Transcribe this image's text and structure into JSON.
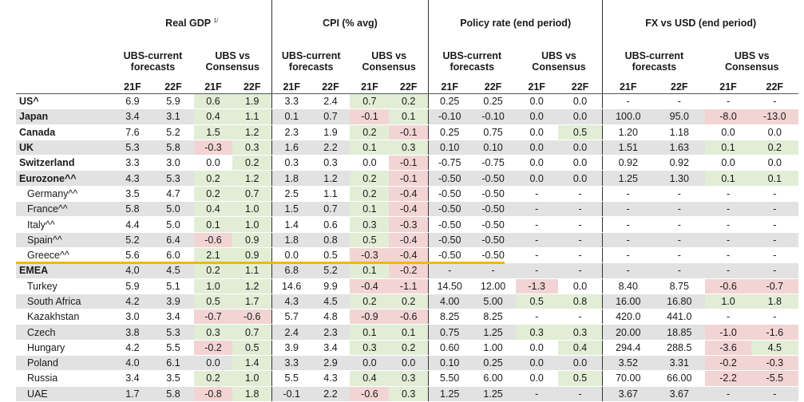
{
  "groups": {
    "gdp": "Real GDP",
    "gdp_note": "1/",
    "cpi": "CPI (% avg)",
    "policy": "Policy rate (end period)",
    "fx": "FX vs USD (end period)"
  },
  "subheaders": {
    "ubs_current_1": "UBS-current",
    "ubs_current_2": "forecasts",
    "vs_1": "UBS vs",
    "vs_2": "Consensus"
  },
  "years": [
    "21F",
    "22F"
  ],
  "rows": [
    {
      "label": "US^",
      "style": "bold",
      "shade": false,
      "v": [
        "6.9",
        "5.9",
        "0.6",
        "1.9",
        "3.3",
        "2.4",
        "0.7",
        "0.2",
        "0.25",
        "0.25",
        "0.0",
        "0.0",
        "-",
        "-",
        "-",
        "-"
      ],
      "c": [
        "",
        "",
        "g",
        "g",
        "",
        "",
        "g",
        "g",
        "",
        "",
        "",
        "",
        "",
        "",
        "",
        ""
      ]
    },
    {
      "label": "Japan",
      "style": "bold",
      "shade": true,
      "v": [
        "3.4",
        "3.1",
        "0.4",
        "1.1",
        "0.1",
        "0.7",
        "-0.1",
        "0.1",
        "-0.10",
        "-0.10",
        "0.0",
        "0.0",
        "100.0",
        "95.0",
        "-8.0",
        "-13.0"
      ],
      "c": [
        "",
        "",
        "g",
        "g",
        "",
        "",
        "r",
        "g",
        "",
        "",
        "",
        "",
        "",
        "",
        "r",
        "r"
      ]
    },
    {
      "label": "Canada",
      "style": "bold",
      "shade": false,
      "v": [
        "7.6",
        "5.2",
        "1.5",
        "1.2",
        "2.3",
        "1.9",
        "0.2",
        "-0.1",
        "0.25",
        "0.75",
        "0.0",
        "0.5",
        "1.20",
        "1.18",
        "0.0",
        "0.0"
      ],
      "c": [
        "",
        "",
        "g",
        "g",
        "",
        "",
        "g",
        "r",
        "",
        "",
        "",
        "g",
        "",
        "",
        "",
        ""
      ]
    },
    {
      "label": "UK",
      "style": "bold",
      "shade": true,
      "v": [
        "5.3",
        "5.8",
        "-0.3",
        "0.3",
        "1.6",
        "2.2",
        "0.1",
        "0.3",
        "0.10",
        "0.10",
        "0.0",
        "0.0",
        "1.51",
        "1.63",
        "0.1",
        "0.2"
      ],
      "c": [
        "",
        "",
        "r",
        "g",
        "",
        "",
        "g",
        "g",
        "",
        "",
        "",
        "",
        "",
        "",
        "g",
        "g"
      ]
    },
    {
      "label": "Switzerland",
      "style": "bold",
      "shade": false,
      "v": [
        "3.3",
        "3.0",
        "0.0",
        "0.2",
        "0.3",
        "0.3",
        "0.0",
        "-0.1",
        "-0.75",
        "-0.75",
        "0.0",
        "0.0",
        "0.92",
        "0.92",
        "0.0",
        "0.0"
      ],
      "c": [
        "",
        "",
        "",
        "g",
        "",
        "",
        "",
        "r",
        "",
        "",
        "",
        "",
        "",
        "",
        "",
        ""
      ]
    },
    {
      "label": "Eurozone^^",
      "style": "bold",
      "shade": true,
      "v": [
        "4.3",
        "5.3",
        "0.2",
        "1.2",
        "1.8",
        "1.2",
        "0.2",
        "-0.1",
        "-0.50",
        "-0.50",
        "0.0",
        "0.0",
        "1.25",
        "1.30",
        "0.1",
        "0.1"
      ],
      "c": [
        "",
        "",
        "g",
        "g",
        "",
        "",
        "g",
        "r",
        "",
        "",
        "",
        "",
        "",
        "",
        "g",
        "g"
      ]
    },
    {
      "label": "Germany^^",
      "style": "indent",
      "shade": false,
      "v": [
        "3.5",
        "4.7",
        "0.2",
        "0.7",
        "2.5",
        "1.1",
        "0.2",
        "-0.4",
        "-0.50",
        "-0.50",
        "-",
        "-",
        "-",
        "-",
        "-",
        "-"
      ],
      "c": [
        "",
        "",
        "g",
        "g",
        "",
        "",
        "g",
        "r",
        "",
        "",
        "",
        "",
        "",
        "",
        "",
        ""
      ]
    },
    {
      "label": "France^^",
      "style": "indent",
      "shade": true,
      "v": [
        "5.8",
        "5.0",
        "0.4",
        "1.0",
        "1.5",
        "0.7",
        "0.1",
        "-0.4",
        "-0.50",
        "-0.50",
        "-",
        "-",
        "-",
        "-",
        "-",
        "-"
      ],
      "c": [
        "",
        "",
        "g",
        "g",
        "",
        "",
        "g",
        "r",
        "",
        "",
        "",
        "",
        "",
        "",
        "",
        ""
      ]
    },
    {
      "label": "Italy^^",
      "style": "indent",
      "shade": false,
      "v": [
        "4.4",
        "5.0",
        "0.1",
        "1.0",
        "1.4",
        "0.6",
        "0.3",
        "-0.3",
        "-0.50",
        "-0.50",
        "-",
        "-",
        "-",
        "-",
        "-",
        "-"
      ],
      "c": [
        "",
        "",
        "g",
        "g",
        "",
        "",
        "g",
        "r",
        "",
        "",
        "",
        "",
        "",
        "",
        "",
        ""
      ]
    },
    {
      "label": "Spain^^",
      "style": "indent",
      "shade": true,
      "v": [
        "5.2",
        "6.4",
        "-0.6",
        "0.9",
        "1.8",
        "0.8",
        "0.5",
        "-0.4",
        "-0.50",
        "-0.50",
        "-",
        "-",
        "-",
        "-",
        "-",
        "-"
      ],
      "c": [
        "",
        "",
        "r",
        "g",
        "",
        "",
        "g",
        "r",
        "",
        "",
        "",
        "",
        "",
        "",
        "",
        ""
      ]
    },
    {
      "label": "Greece^^",
      "style": "indent",
      "shade": false,
      "v": [
        "5.6",
        "6.0",
        "2.1",
        "0.9",
        "0.0",
        "0.5",
        "-0.3",
        "-0.4",
        "-0.50",
        "-0.50",
        "-",
        "-",
        "-",
        "-",
        "-",
        "-"
      ],
      "c": [
        "",
        "",
        "g",
        "g",
        "",
        "",
        "r",
        "r",
        "",
        "",
        "",
        "",
        "",
        "",
        "",
        ""
      ]
    },
    {
      "label": "EMEA",
      "style": "bold",
      "shade": true,
      "v": [
        "4.0",
        "4.5",
        "0.2",
        "1.1",
        "6.8",
        "5.2",
        "0.1",
        "-0.2",
        "-",
        "-",
        "-",
        "-",
        "-",
        "-",
        "-",
        "-"
      ],
      "c": [
        "",
        "",
        "g",
        "g",
        "",
        "",
        "g",
        "r",
        "",
        "",
        "",
        "",
        "",
        "",
        "",
        ""
      ]
    },
    {
      "label": "Turkey",
      "style": "indent",
      "shade": false,
      "v": [
        "5.9",
        "5.1",
        "1.0",
        "1.2",
        "14.6",
        "9.9",
        "-0.4",
        "-1.1",
        "14.50",
        "12.00",
        "-1.3",
        "0.0",
        "8.40",
        "8.75",
        "-0.6",
        "-0.7"
      ],
      "c": [
        "",
        "",
        "g",
        "g",
        "",
        "",
        "r",
        "r",
        "",
        "",
        "r",
        "",
        "",
        "",
        "r",
        "r"
      ]
    },
    {
      "label": "South Africa",
      "style": "indent",
      "shade": true,
      "v": [
        "4.2",
        "3.9",
        "0.5",
        "1.7",
        "4.3",
        "4.5",
        "0.2",
        "0.2",
        "4.00",
        "5.00",
        "0.5",
        "0.8",
        "16.00",
        "16.80",
        "1.0",
        "1.8"
      ],
      "c": [
        "",
        "",
        "g",
        "g",
        "",
        "",
        "g",
        "g",
        "",
        "",
        "g",
        "g",
        "",
        "",
        "g",
        "g"
      ]
    },
    {
      "label": "Kazakhstan",
      "style": "indent",
      "shade": false,
      "v": [
        "3.0",
        "3.4",
        "-0.7",
        "-0.6",
        "5.7",
        "4.8",
        "-0.9",
        "-0.6",
        "8.25",
        "8.25",
        "-",
        "-",
        "420.0",
        "441.0",
        "-",
        "-"
      ],
      "c": [
        "",
        "",
        "r",
        "r",
        "",
        "",
        "r",
        "r",
        "",
        "",
        "",
        "",
        "",
        "",
        "",
        ""
      ]
    },
    {
      "label": "Czech",
      "style": "indent",
      "shade": true,
      "v": [
        "3.8",
        "5.3",
        "0.3",
        "0.7",
        "2.4",
        "2.3",
        "0.1",
        "0.1",
        "0.75",
        "1.25",
        "0.3",
        "0.3",
        "20.00",
        "18.85",
        "-1.0",
        "-1.6"
      ],
      "c": [
        "",
        "",
        "g",
        "g",
        "",
        "",
        "g",
        "g",
        "",
        "",
        "g",
        "g",
        "",
        "",
        "r",
        "r"
      ]
    },
    {
      "label": "Hungary",
      "style": "indent",
      "shade": false,
      "v": [
        "4.2",
        "5.5",
        "-0.2",
        "0.5",
        "3.9",
        "3.4",
        "0.3",
        "0.2",
        "0.60",
        "1.00",
        "0.0",
        "0.4",
        "294.4",
        "288.5",
        "-3.6",
        "4.5"
      ],
      "c": [
        "",
        "",
        "r",
        "g",
        "",
        "",
        "g",
        "g",
        "",
        "",
        "",
        "g",
        "",
        "",
        "r",
        "g"
      ]
    },
    {
      "label": "Poland",
      "style": "indent",
      "shade": true,
      "v": [
        "4.0",
        "6.1",
        "0.0",
        "1.4",
        "3.3",
        "2.9",
        "0.0",
        "0.0",
        "0.10",
        "0.25",
        "0.0",
        "0.0",
        "3.52",
        "3.31",
        "-0.2",
        "-0.3"
      ],
      "c": [
        "",
        "",
        "",
        "g",
        "",
        "",
        "",
        "",
        "",
        "",
        "",
        "",
        "",
        "",
        "r",
        "r"
      ]
    },
    {
      "label": "Russia",
      "style": "indent",
      "shade": false,
      "v": [
        "3.4",
        "3.5",
        "0.2",
        "1.0",
        "5.5",
        "4.3",
        "0.4",
        "0.3",
        "5.50",
        "6.00",
        "0.0",
        "0.5",
        "70.00",
        "66.00",
        "-2.2",
        "-5.5"
      ],
      "c": [
        "",
        "",
        "g",
        "g",
        "",
        "",
        "g",
        "g",
        "",
        "",
        "",
        "g",
        "",
        "",
        "r",
        "r"
      ]
    },
    {
      "label": "UAE",
      "style": "indent",
      "shade": true,
      "v": [
        "1.7",
        "5.8",
        "-0.8",
        "1.8",
        "-0.1",
        "2.2",
        "-0.6",
        "0.3",
        "1.25",
        "1.25",
        "-",
        "-",
        "3.67",
        "3.67",
        "-",
        "-"
      ],
      "c": [
        "",
        "",
        "r",
        "g",
        "",
        "",
        "r",
        "g",
        "",
        "",
        "",
        "",
        "",
        "",
        "",
        ""
      ]
    }
  ]
}
